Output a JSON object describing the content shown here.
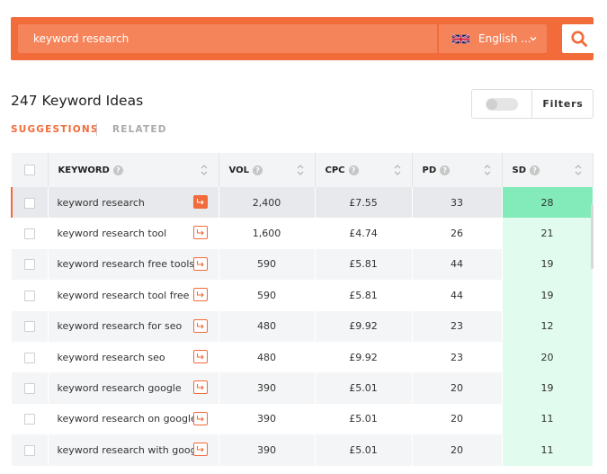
{
  "search": {
    "query": "keyword research",
    "language": "English ...",
    "button_icon": "search-icon"
  },
  "title": "247 Keyword Ideas",
  "filters": {
    "label": "Filters",
    "toggle_on": false
  },
  "tabs": [
    {
      "label": "SUGGESTIONS",
      "active": true
    },
    {
      "label": "RELATED",
      "active": false
    }
  ],
  "table": {
    "headers": {
      "keyword": "KEYWORD",
      "vol": "VOL",
      "cpc": "CPC",
      "pd": "PD",
      "sd": "SD"
    },
    "rows": [
      {
        "keyword": "keyword research",
        "vol": "2,400",
        "cpc": "£7.55",
        "pd": "33",
        "sd": "28"
      },
      {
        "keyword": "keyword research tool",
        "vol": "1,600",
        "cpc": "£4.74",
        "pd": "26",
        "sd": "21"
      },
      {
        "keyword": "keyword research free tools",
        "vol": "590",
        "cpc": "£5.81",
        "pd": "44",
        "sd": "19"
      },
      {
        "keyword": "keyword research tool free",
        "vol": "590",
        "cpc": "£5.81",
        "pd": "44",
        "sd": "19"
      },
      {
        "keyword": "keyword research for seo",
        "vol": "480",
        "cpc": "£9.92",
        "pd": "23",
        "sd": "12"
      },
      {
        "keyword": "keyword research seo",
        "vol": "480",
        "cpc": "£9.92",
        "pd": "23",
        "sd": "20"
      },
      {
        "keyword": "keyword research google",
        "vol": "390",
        "cpc": "£5.01",
        "pd": "20",
        "sd": "19"
      },
      {
        "keyword": "keyword research on google",
        "vol": "390",
        "cpc": "£5.01",
        "pd": "20",
        "sd": "11"
      },
      {
        "keyword": "keyword research with google",
        "vol": "390",
        "cpc": "£5.01",
        "pd": "20",
        "sd": "11"
      }
    ]
  },
  "colors": {
    "accent": "#f26b3a",
    "sd_high": "#82ebb9",
    "sd_low": "#e1fbee"
  }
}
